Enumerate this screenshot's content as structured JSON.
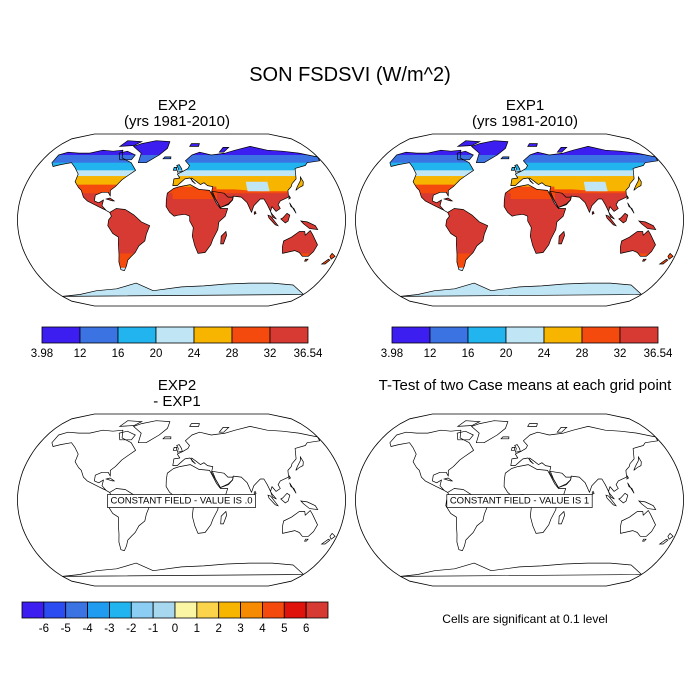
{
  "title": "SON FSDSVI (W/m^2)",
  "panels": [
    {
      "id": "exp2",
      "title_line1": "EXP2",
      "title_line2": "(yrs 1981-2010)",
      "type": "filled"
    },
    {
      "id": "exp1",
      "title_line1": "EXP1",
      "title_line2": "(yrs 1981-2010)",
      "type": "filled"
    },
    {
      "id": "diff",
      "title_line1": "EXP2",
      "title_line2": "- EXP1",
      "type": "empty",
      "label": "CONSTANT FIELD - VALUE IS .0"
    },
    {
      "id": "ttest",
      "title_line1": "T-Test of two Case means at each grid point",
      "title_line2": "",
      "type": "empty",
      "label": "CONSTANT FIELD - VALUE IS 1"
    }
  ],
  "colorbar_top": {
    "labels": [
      "3.98",
      "12",
      "16",
      "20",
      "24",
      "28",
      "32",
      "36.54"
    ],
    "colors": [
      "#3d1ef0",
      "#3b73e3",
      "#22b4ee",
      "#c0e6f5",
      "#f7b500",
      "#f54a0e",
      "#d63a32"
    ]
  },
  "colorbar_bottom": {
    "labels": [
      "-6",
      "-5",
      "-4",
      "-3",
      "-2",
      "-1",
      "0",
      "1",
      "2",
      "3",
      "4",
      "5",
      "6"
    ],
    "colors": [
      "#3d1ef0",
      "#2b4cf0",
      "#3b73e3",
      "#1f9bf0",
      "#22b4ee",
      "#8ccdf3",
      "#a8d8f0",
      "#fbf6a3",
      "#fbd44b",
      "#f7b500",
      "#f68a00",
      "#f54a0e",
      "#e0120c",
      "#d63a32"
    ]
  },
  "note": "Cells are significant at 0.1 level",
  "map_colors": {
    "polar": "#3d1ef0",
    "highlat": "#3b73e3",
    "midhigh": "#22b4ee",
    "light": "#c0e6f5",
    "sub": "#f7b500",
    "warm": "#f54a0e",
    "hot": "#d63a32"
  }
}
